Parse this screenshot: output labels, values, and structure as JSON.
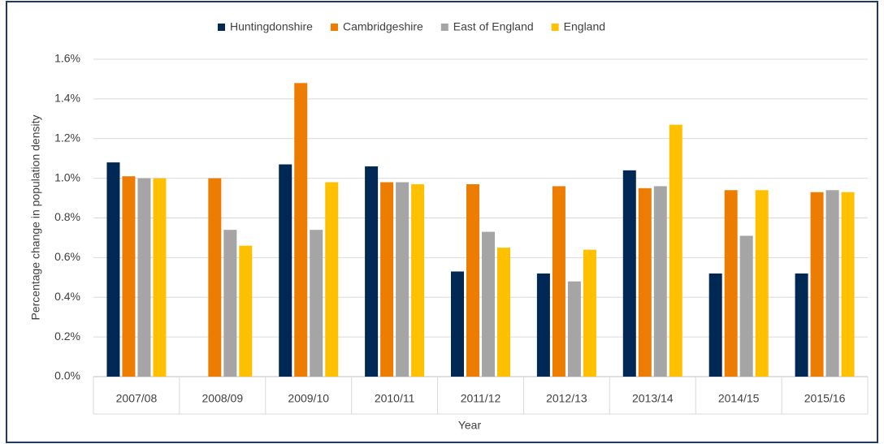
{
  "chart_data": {
    "type": "bar",
    "x_label": "Year",
    "y_label": "Percentage change in population density",
    "categories": [
      "2007/08",
      "2008/09",
      "2009/10",
      "2010/11",
      "2011/12",
      "2012/13",
      "2013/14",
      "2014/15",
      "2015/16"
    ],
    "series": [
      {
        "name": "Huntingdonshire",
        "color": "#002855",
        "values": [
          1.08,
          null,
          1.07,
          1.06,
          0.53,
          0.52,
          1.04,
          0.52,
          0.52
        ]
      },
      {
        "name": "Cambridgeshire",
        "color": "#ed7d00",
        "values": [
          1.01,
          1.0,
          1.48,
          0.98,
          0.97,
          0.96,
          0.95,
          0.94,
          0.93
        ]
      },
      {
        "name": "East of England",
        "color": "#a5a5a5",
        "values": [
          1.0,
          0.74,
          0.74,
          0.98,
          0.73,
          0.48,
          0.96,
          0.71,
          0.94
        ]
      },
      {
        "name": "England",
        "color": "#ffc000",
        "values": [
          1.0,
          0.66,
          0.98,
          0.97,
          0.65,
          0.64,
          1.27,
          0.94,
          0.93
        ]
      }
    ],
    "ylim": [
      0,
      1.6
    ],
    "yticks": [
      {
        "value": 0,
        "label": "0.0%"
      },
      {
        "value": 0.2,
        "label": "0.2%"
      },
      {
        "value": 0.4,
        "label": "0.4%"
      },
      {
        "value": 0.6,
        "label": "0.6%"
      },
      {
        "value": 0.8,
        "label": "0.8%"
      },
      {
        "value": 1.0,
        "label": "1.0%"
      },
      {
        "value": 1.2,
        "label": "1.2%"
      },
      {
        "value": 1.4,
        "label": "1.4%"
      },
      {
        "value": 1.6,
        "label": "1.6%"
      }
    ],
    "grid": true,
    "legend": "top"
  }
}
